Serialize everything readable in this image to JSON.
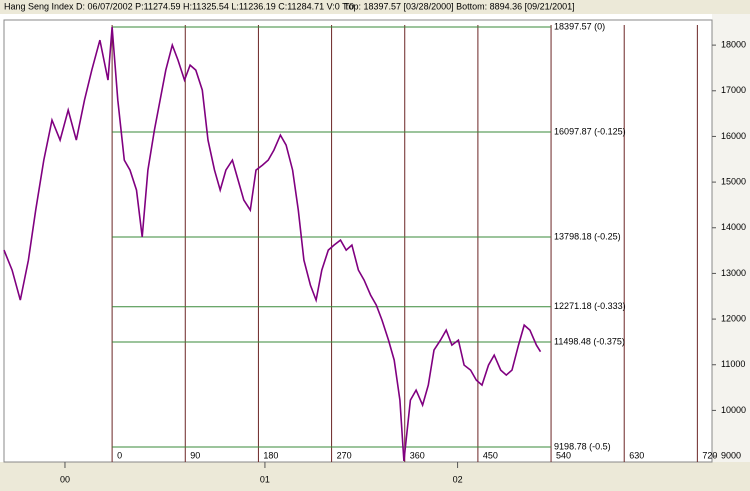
{
  "chart_data": {
    "type": "line",
    "title": "Hang Seng Index  D: 06/07/2002  P:11274.59  H:11325.54  L:11236.19  C:11284.71  V:0  T:0",
    "subtitle": "Top: 18397.57 [03/28/2000]  Bottom: 8894.36 [09/21/2001]",
    "x": [
      -133,
      -123,
      -113,
      -103,
      -94,
      -84,
      -74,
      -64,
      -54,
      -44,
      -34,
      -25,
      -15,
      -5,
      0,
      7,
      15,
      22,
      30,
      37,
      44,
      52,
      59,
      66,
      74,
      81,
      89,
      96,
      103,
      111,
      118,
      126,
      133,
      140,
      148,
      155,
      162,
      170,
      177,
      185,
      192,
      199,
      207,
      214,
      222,
      229,
      236,
      244,
      251,
      258,
      266,
      273,
      281,
      288,
      295,
      303,
      310,
      318,
      325,
      332,
      340,
      347,
      354,
      359,
      367,
      374,
      382,
      389,
      396,
      404,
      411,
      418,
      426,
      433,
      441,
      448,
      455,
      463,
      470,
      478,
      485,
      492,
      500,
      507,
      514,
      522,
      527
    ],
    "series": [
      {
        "name": "Hang Seng Index",
        "color": "#800080",
        "values": [
          13510,
          13073,
          12416,
          13292,
          14387,
          15482,
          16357,
          15920,
          16577,
          15920,
          16796,
          17453,
          18110,
          17234,
          18397.57,
          16796,
          15482,
          15263,
          14825,
          13800,
          15263,
          16139,
          16796,
          17453,
          18000,
          17672,
          17234,
          17562,
          17453,
          17015,
          15920,
          15263,
          14825,
          15263,
          15482,
          15044,
          14606,
          14387,
          15263,
          15372,
          15482,
          15701,
          16029,
          15810,
          15263,
          14387,
          13292,
          12745,
          12416,
          13073,
          13511,
          13620,
          13730,
          13511,
          13620,
          13073,
          12854,
          12526,
          12307,
          11978,
          11540,
          11102,
          10226,
          8894.36,
          10226,
          10445,
          10117,
          10554,
          11321,
          11540,
          11759,
          11430,
          11540,
          10992,
          10883,
          10664,
          10554,
          10992,
          11211,
          10883,
          10773,
          10883,
          11430,
          11868,
          11759,
          11430,
          11284.71
        ]
      }
    ],
    "xlim": [
      -133,
      738
    ],
    "ylim": [
      8870,
      18550
    ],
    "xticks": [
      0,
      90,
      180,
      270,
      360,
      450,
      540,
      630,
      720
    ],
    "date_ticks": [
      {
        "value": -58,
        "label": "00"
      },
      {
        "value": 188,
        "label": "01"
      },
      {
        "value": 425,
        "label": "02"
      }
    ],
    "yticks": [
      9000,
      10000,
      11000,
      12000,
      13000,
      14000,
      15000,
      16000,
      17000,
      18000
    ],
    "levels": [
      {
        "value": 18397.57,
        "label": "18397.57  (0)"
      },
      {
        "value": 16097.87,
        "label": "16097.87  (-0.125)"
      },
      {
        "value": 13798.18,
        "label": "13798.18  (-0.25)"
      },
      {
        "value": 12271.18,
        "label": "12271.18  (-0.333)"
      },
      {
        "value": 11498.48,
        "label": "11498.48  (-0.375)"
      },
      {
        "value": 9198.78,
        "label": "9198.78  (-0.5)"
      }
    ],
    "level_color": "#3a8a3a",
    "vline_color": "#6b2525"
  }
}
